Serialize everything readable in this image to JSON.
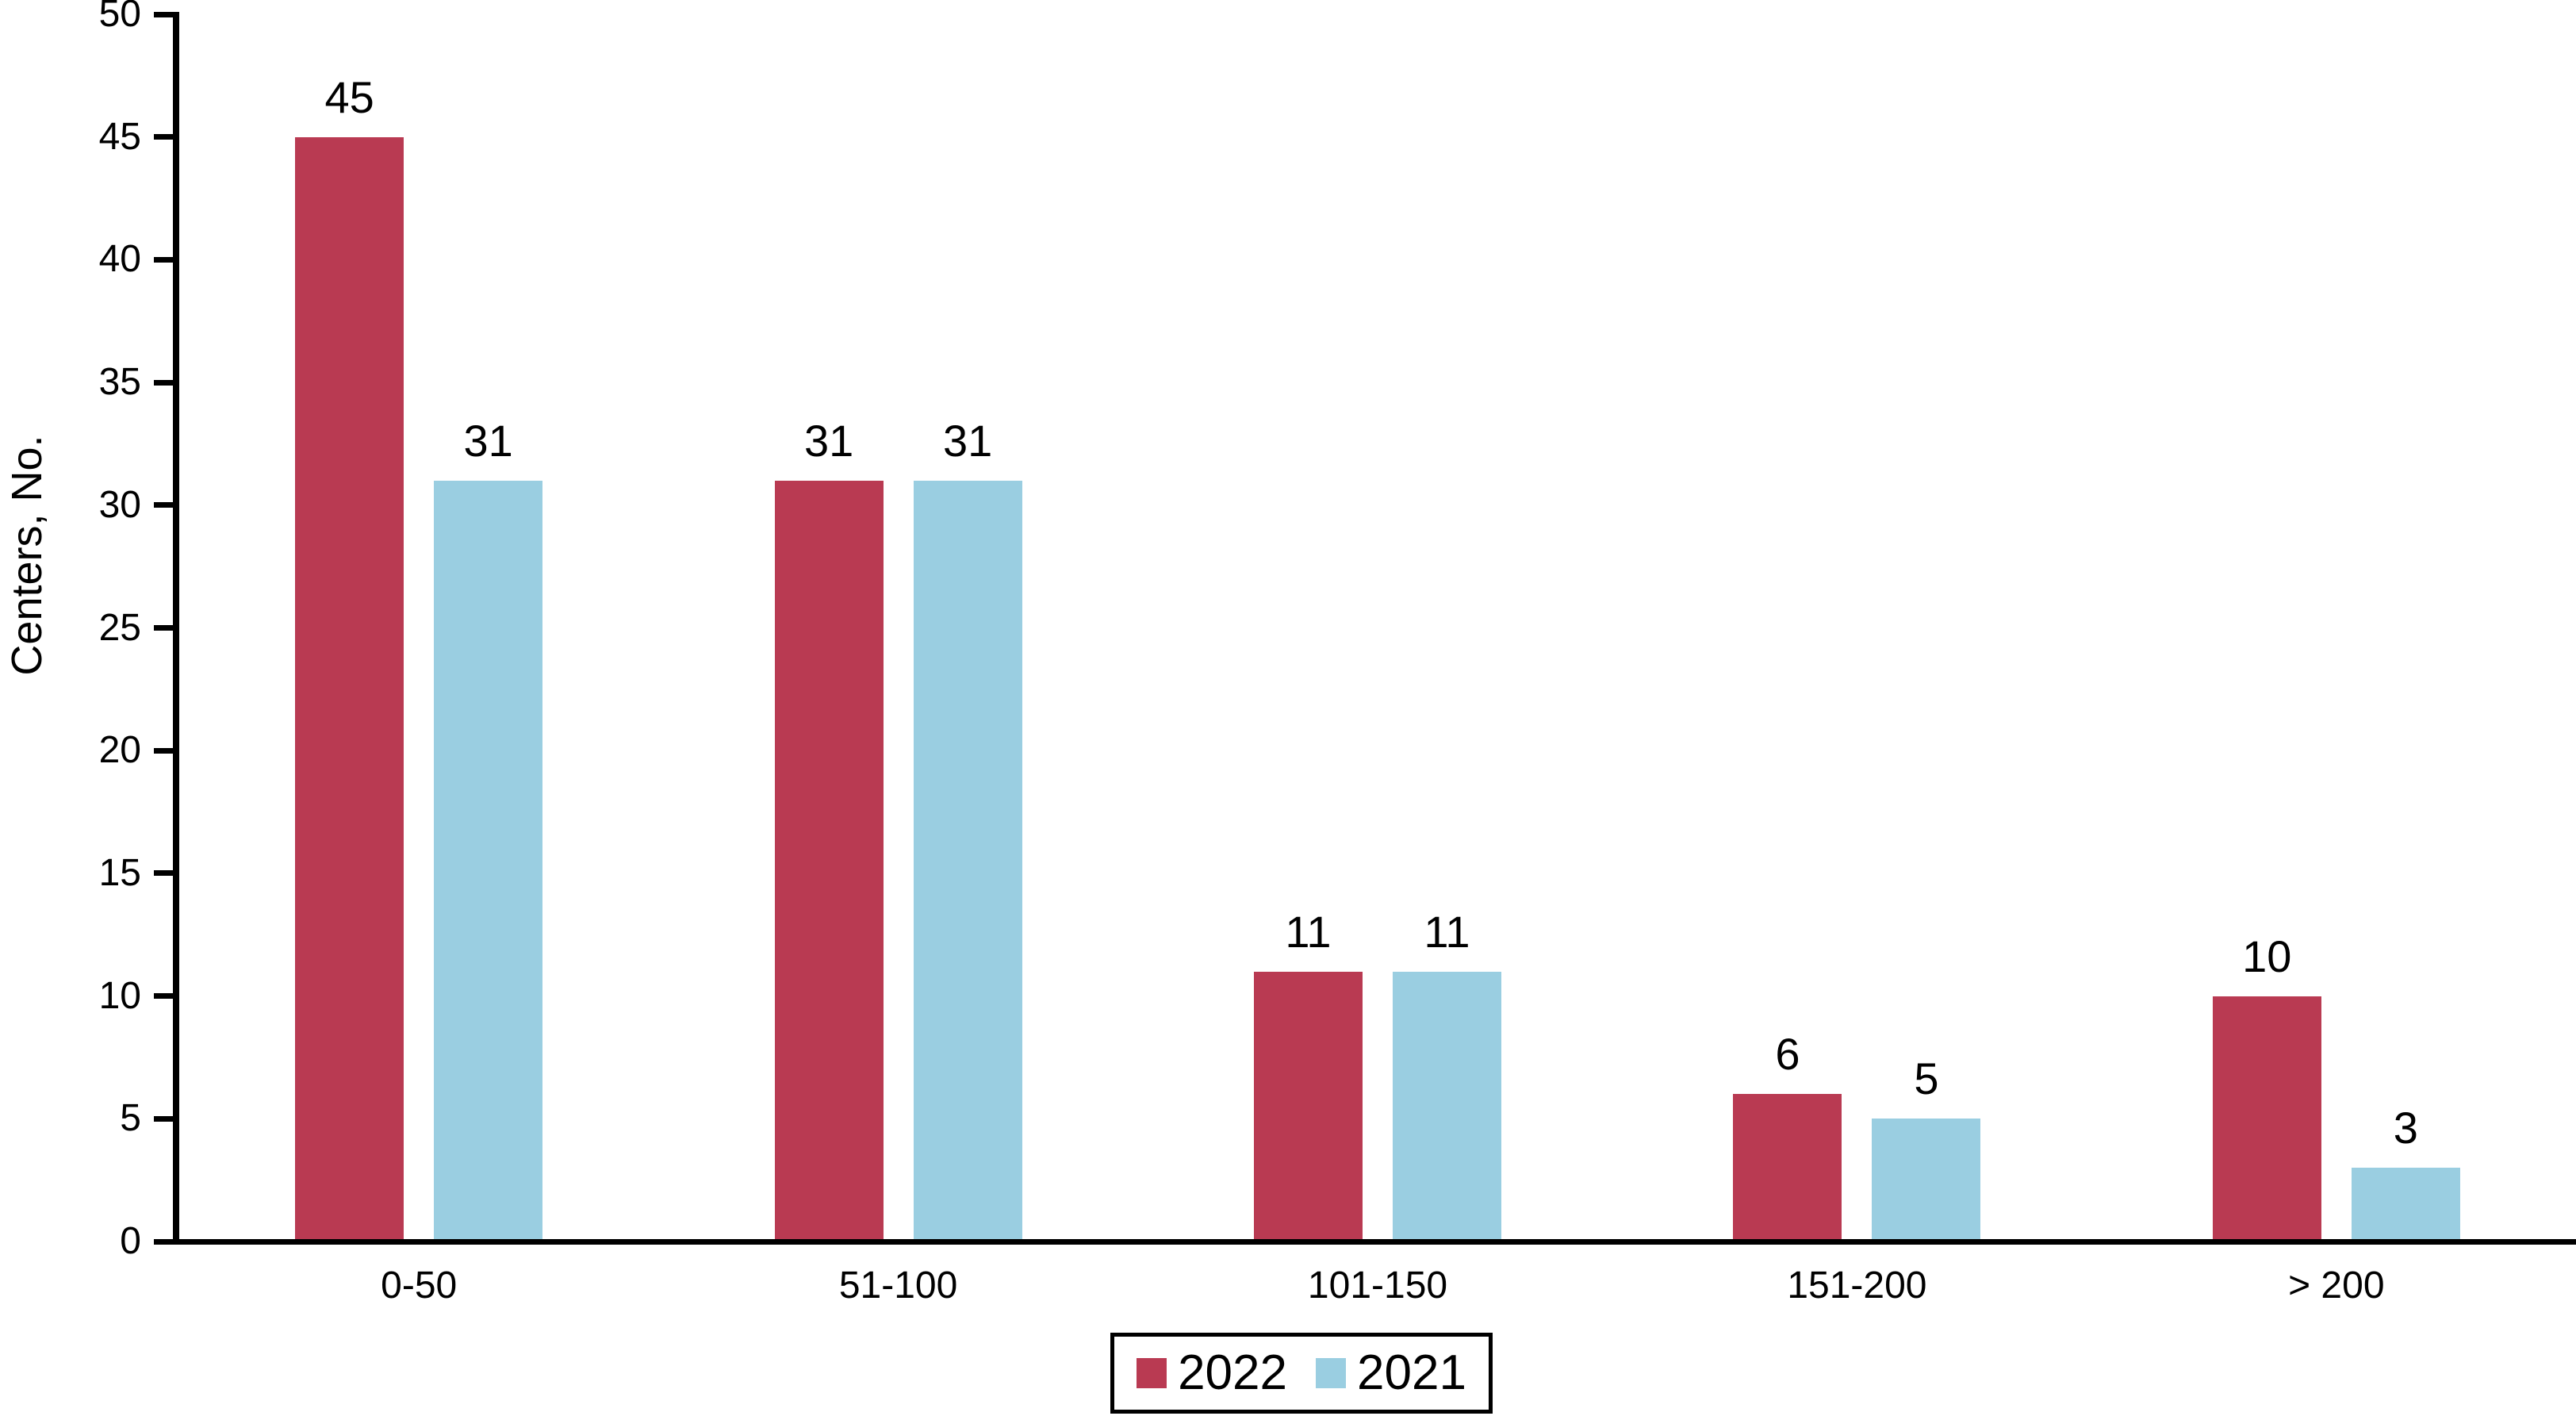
{
  "chart_data": {
    "type": "bar",
    "ylabel": "Centers, No.",
    "categories": [
      "0-50",
      "51-100",
      "101-150",
      "151-200",
      "> 200"
    ],
    "series": [
      {
        "name": "2022",
        "color": "#B93A52",
        "values": [
          45,
          31,
          11,
          6,
          10
        ]
      },
      {
        "name": "2021",
        "color": "#9ACEE1",
        "values": [
          31,
          31,
          11,
          5,
          3
        ]
      }
    ],
    "y_axis": {
      "min": 0,
      "max": 50,
      "step": 5,
      "tick_labels": [
        "0",
        "5",
        "10",
        "15",
        "20",
        "25",
        "30",
        "35",
        "40",
        "45",
        "50"
      ]
    },
    "bar_value_labels": {
      "2022": [
        "45",
        "31",
        "11",
        "6",
        "10"
      ],
      "2021": [
        "31",
        "31",
        "11",
        "5",
        "3"
      ]
    },
    "legend": {
      "position": "bottom-center",
      "border": true
    },
    "grid": false,
    "axis_color": "#000000",
    "text_color": "#000000",
    "background_color": "#FFFFFF"
  }
}
